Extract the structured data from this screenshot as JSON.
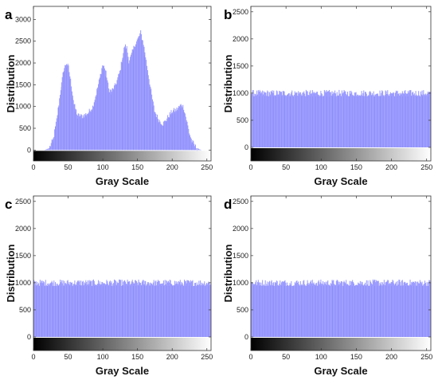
{
  "chart_data": [
    {
      "type": "bar",
      "panel_label": "a",
      "xlabel": "Gray Scale",
      "ylabel": "Distribution",
      "xlim": [
        0,
        256
      ],
      "ylim": [
        -250,
        3300
      ],
      "xticks": [
        "0",
        "50",
        "100",
        "150",
        "200",
        "250"
      ],
      "yticks": [
        "0",
        "500",
        "1000",
        "1500",
        "2000",
        "2500",
        "3000"
      ],
      "bar_color": "#9999ff",
      "profile": [
        [
          0,
          0
        ],
        [
          15,
          0
        ],
        [
          22,
          40
        ],
        [
          28,
          250
        ],
        [
          33,
          700
        ],
        [
          38,
          1300
        ],
        [
          43,
          1850
        ],
        [
          47,
          2000
        ],
        [
          50,
          1900
        ],
        [
          54,
          1500
        ],
        [
          58,
          1050
        ],
        [
          63,
          800
        ],
        [
          70,
          780
        ],
        [
          78,
          850
        ],
        [
          85,
          1000
        ],
        [
          90,
          1300
        ],
        [
          95,
          1650
        ],
        [
          99,
          1950
        ],
        [
          102,
          1900
        ],
        [
          105,
          1700
        ],
        [
          108,
          1400
        ],
        [
          112,
          1350
        ],
        [
          118,
          1500
        ],
        [
          124,
          1800
        ],
        [
          128,
          2150
        ],
        [
          131,
          2400
        ],
        [
          134,
          2350
        ],
        [
          137,
          2050
        ],
        [
          140,
          2150
        ],
        [
          145,
          2400
        ],
        [
          150,
          2550
        ],
        [
          154,
          2700
        ],
        [
          158,
          2450
        ],
        [
          162,
          2050
        ],
        [
          166,
          1650
        ],
        [
          170,
          1250
        ],
        [
          174,
          900
        ],
        [
          180,
          700
        ],
        [
          186,
          600
        ],
        [
          190,
          680
        ],
        [
          195,
          800
        ],
        [
          200,
          900
        ],
        [
          205,
          920
        ],
        [
          210,
          1000
        ],
        [
          213,
          1050
        ],
        [
          216,
          980
        ],
        [
          220,
          700
        ],
        [
          224,
          400
        ],
        [
          228,
          200
        ],
        [
          233,
          80
        ],
        [
          238,
          20
        ],
        [
          242,
          0
        ],
        [
          255,
          0
        ]
      ],
      "gradient_bar": true
    },
    {
      "type": "bar",
      "panel_label": "b",
      "xlabel": "Gray Scale",
      "ylabel": "Distribution",
      "xlim": [
        0,
        256
      ],
      "ylim": [
        -250,
        2600
      ],
      "xticks": [
        "0",
        "50",
        "100",
        "150",
        "200",
        "250"
      ],
      "yticks": [
        "0",
        "500",
        "1000",
        "1500",
        "2000",
        "2500"
      ],
      "bar_color": "#9999ff",
      "profile": [
        [
          0,
          1000
        ],
        [
          255,
          1000
        ]
      ],
      "noise": 60,
      "gradient_bar": true
    },
    {
      "type": "bar",
      "panel_label": "c",
      "xlabel": "Gray Scale",
      "ylabel": "Distribution",
      "xlim": [
        0,
        256
      ],
      "ylim": [
        -250,
        2600
      ],
      "xticks": [
        "0",
        "50",
        "100",
        "150",
        "200",
        "250"
      ],
      "yticks": [
        "0",
        "500",
        "1000",
        "1500",
        "2000",
        "2500"
      ],
      "bar_color": "#9999ff",
      "profile": [
        [
          0,
          1000
        ],
        [
          255,
          1000
        ]
      ],
      "noise": 60,
      "gradient_bar": true
    },
    {
      "type": "bar",
      "panel_label": "d",
      "xlabel": "Gray Scale",
      "ylabel": "Distribution",
      "xlim": [
        0,
        256
      ],
      "ylim": [
        -250,
        2600
      ],
      "xticks": [
        "0",
        "50",
        "100",
        "150",
        "200",
        "250"
      ],
      "yticks": [
        "0",
        "500",
        "1000",
        "1500",
        "2000",
        "2500"
      ],
      "bar_color": "#9999ff",
      "profile": [
        [
          0,
          1000
        ],
        [
          255,
          1000
        ]
      ],
      "noise": 60,
      "gradient_bar": true
    }
  ]
}
